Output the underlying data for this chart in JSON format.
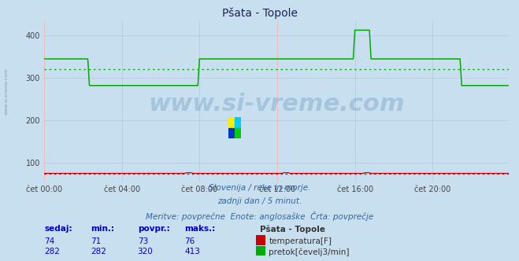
{
  "title": "Pšata - Topole",
  "background_color": "#c8dff0",
  "plot_bg_color": "#c8dff0",
  "subtitle_lines": [
    "Slovenija / reke in morje.",
    "zadnji dan / 5 minut.",
    "Meritve: povprečne  Enote: anglosaške  Črta: povprečje"
  ],
  "xlabel_ticks": [
    "čet 00:00",
    "čet 04:00",
    "čet 08:00",
    "čet 12:00",
    "čet 16:00",
    "čet 20:00"
  ],
  "ylabel_ticks": [
    100,
    200,
    300,
    400
  ],
  "ylim": [
    55,
    435
  ],
  "xlim": [
    0,
    287
  ],
  "temp_color": "#cc0000",
  "flow_color": "#00aa00",
  "avg_temp_color": "#cc0000",
  "avg_flow_color": "#00aa00",
  "watermark_text": "www.si-vreme.com",
  "legend_title": "Pšata - Topole",
  "legend_labels": [
    "temperatura[F]",
    "pretok[čevelj3/min]"
  ],
  "legend_colors": [
    "#cc0000",
    "#00aa00"
  ],
  "table_headers": [
    "sedaj:",
    "min.:",
    "povpr.:",
    "maks.:"
  ],
  "table_data": [
    [
      74,
      71,
      73,
      76
    ],
    [
      282,
      282,
      320,
      413
    ]
  ],
  "avg_temp": 73,
  "avg_flow": 320,
  "grid_color": "#ffaaaa",
  "tick_x_positions": [
    0,
    48,
    96,
    144,
    192,
    240
  ]
}
